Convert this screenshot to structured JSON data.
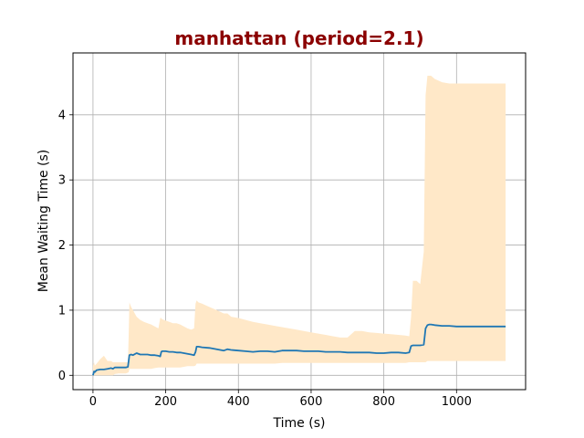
{
  "chart_data": {
    "type": "line",
    "title": "manhattan (period=2.1)",
    "xlabel": "Time (s)",
    "ylabel": "Mean Waiting Time (s)",
    "xlim": [
      -55,
      1190
    ],
    "ylim": [
      -0.22,
      4.95
    ],
    "xticks": [
      0,
      200,
      400,
      600,
      800,
      1000
    ],
    "yticks": [
      0,
      1,
      2,
      3,
      4
    ],
    "grid": true,
    "colors": {
      "line": "#1f77b4",
      "band": "#ffe8c8",
      "title": "#8b0000",
      "grid": "#b0b0b0"
    },
    "series": [
      {
        "x": [
          0,
          3,
          5,
          10,
          20,
          30,
          40,
          50,
          55,
          60,
          70,
          80,
          90,
          96,
          98,
          100,
          105,
          110,
          120,
          130,
          140,
          150,
          160,
          170,
          180,
          185,
          188,
          190,
          200,
          210,
          220,
          230,
          240,
          250,
          260,
          270,
          278,
          282,
          285,
          290,
          300,
          320,
          340,
          360,
          370,
          380,
          400,
          420,
          440,
          460,
          480,
          500,
          520,
          540,
          560,
          580,
          600,
          620,
          640,
          660,
          680,
          700,
          720,
          740,
          760,
          780,
          800,
          820,
          840,
          860,
          870,
          875,
          880,
          890,
          900,
          910,
          915,
          920,
          925,
          930,
          940,
          960,
          980,
          1000,
          1050,
          1100,
          1135
        ],
        "y": [
          0.0,
          0.06,
          0.05,
          0.08,
          0.09,
          0.09,
          0.1,
          0.11,
          0.1,
          0.12,
          0.12,
          0.12,
          0.12,
          0.13,
          0.22,
          0.31,
          0.32,
          0.31,
          0.34,
          0.32,
          0.32,
          0.32,
          0.31,
          0.31,
          0.3,
          0.29,
          0.36,
          0.37,
          0.37,
          0.36,
          0.36,
          0.35,
          0.35,
          0.34,
          0.33,
          0.32,
          0.31,
          0.36,
          0.44,
          0.44,
          0.43,
          0.42,
          0.4,
          0.38,
          0.4,
          0.39,
          0.38,
          0.37,
          0.36,
          0.37,
          0.37,
          0.36,
          0.38,
          0.38,
          0.38,
          0.37,
          0.37,
          0.37,
          0.36,
          0.36,
          0.36,
          0.35,
          0.35,
          0.35,
          0.35,
          0.34,
          0.34,
          0.35,
          0.35,
          0.34,
          0.35,
          0.45,
          0.46,
          0.46,
          0.46,
          0.47,
          0.72,
          0.77,
          0.78,
          0.78,
          0.77,
          0.76,
          0.76,
          0.75,
          0.75,
          0.75,
          0.75
        ],
        "lower": [
          0.0,
          0.0,
          0.0,
          0.0,
          0.0,
          0.0,
          0.0,
          0.0,
          0.0,
          0.02,
          0.03,
          0.03,
          0.03,
          0.04,
          0.05,
          0.1,
          0.1,
          0.1,
          0.1,
          0.1,
          0.1,
          0.1,
          0.1,
          0.11,
          0.12,
          0.12,
          0.12,
          0.12,
          0.12,
          0.12,
          0.12,
          0.12,
          0.12,
          0.13,
          0.14,
          0.14,
          0.14,
          0.15,
          0.18,
          0.18,
          0.18,
          0.18,
          0.18,
          0.18,
          0.18,
          0.18,
          0.18,
          0.18,
          0.18,
          0.18,
          0.18,
          0.18,
          0.19,
          0.19,
          0.19,
          0.19,
          0.19,
          0.19,
          0.19,
          0.19,
          0.19,
          0.19,
          0.19,
          0.19,
          0.19,
          0.19,
          0.19,
          0.19,
          0.19,
          0.19,
          0.2,
          0.2,
          0.2,
          0.2,
          0.2,
          0.2,
          0.2,
          0.22,
          0.22,
          0.22,
          0.22,
          0.22,
          0.22,
          0.22,
          0.22,
          0.22,
          0.22
        ],
        "upper": [
          0.15,
          0.2,
          0.15,
          0.18,
          0.25,
          0.3,
          0.22,
          0.22,
          0.2,
          0.2,
          0.2,
          0.2,
          0.2,
          0.2,
          0.6,
          1.12,
          1.05,
          1.0,
          0.9,
          0.85,
          0.82,
          0.8,
          0.78,
          0.75,
          0.72,
          0.88,
          0.88,
          0.86,
          0.84,
          0.82,
          0.8,
          0.8,
          0.78,
          0.75,
          0.72,
          0.7,
          0.72,
          1.1,
          1.15,
          1.12,
          1.1,
          1.05,
          1.0,
          0.95,
          0.95,
          0.9,
          0.88,
          0.85,
          0.82,
          0.8,
          0.78,
          0.76,
          0.74,
          0.72,
          0.7,
          0.68,
          0.66,
          0.64,
          0.62,
          0.6,
          0.58,
          0.58,
          0.68,
          0.68,
          0.66,
          0.65,
          0.64,
          0.63,
          0.62,
          0.61,
          0.6,
          0.9,
          1.45,
          1.45,
          1.4,
          1.9,
          4.3,
          4.6,
          4.6,
          4.6,
          4.55,
          4.5,
          4.48,
          4.48,
          4.48,
          4.48,
          4.48
        ]
      }
    ]
  }
}
